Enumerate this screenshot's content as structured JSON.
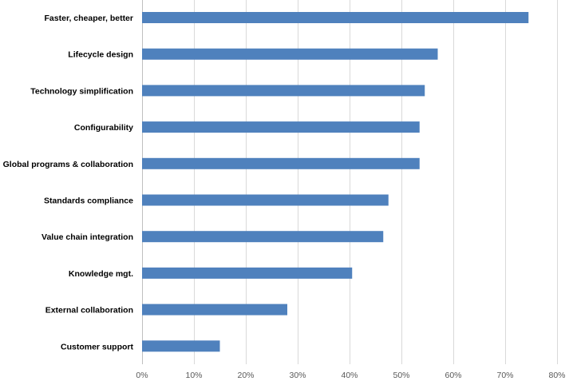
{
  "chart_data": {
    "type": "bar",
    "orientation": "horizontal",
    "categories": [
      "Faster, cheaper, better",
      "Lifecycle design",
      "Technology simplification",
      "Configurability",
      "Global programs & collaboration",
      "Standards compliance",
      "Value chain integration",
      "Knowledge mgt.",
      "External collaboration",
      "Customer support"
    ],
    "values": [
      74.5,
      57,
      54.5,
      53.5,
      53.5,
      47.5,
      46.5,
      40.5,
      28,
      15
    ],
    "xlim": [
      0,
      80
    ],
    "x_ticks": [
      0,
      10,
      20,
      30,
      40,
      50,
      60,
      70,
      80
    ],
    "x_tick_labels": [
      "0%",
      "10%",
      "20%",
      "30%",
      "40%",
      "50%",
      "60%",
      "70%",
      "80%"
    ],
    "grid": true,
    "bar_color": "#4f81bd",
    "title": "",
    "xlabel": "",
    "ylabel": ""
  }
}
